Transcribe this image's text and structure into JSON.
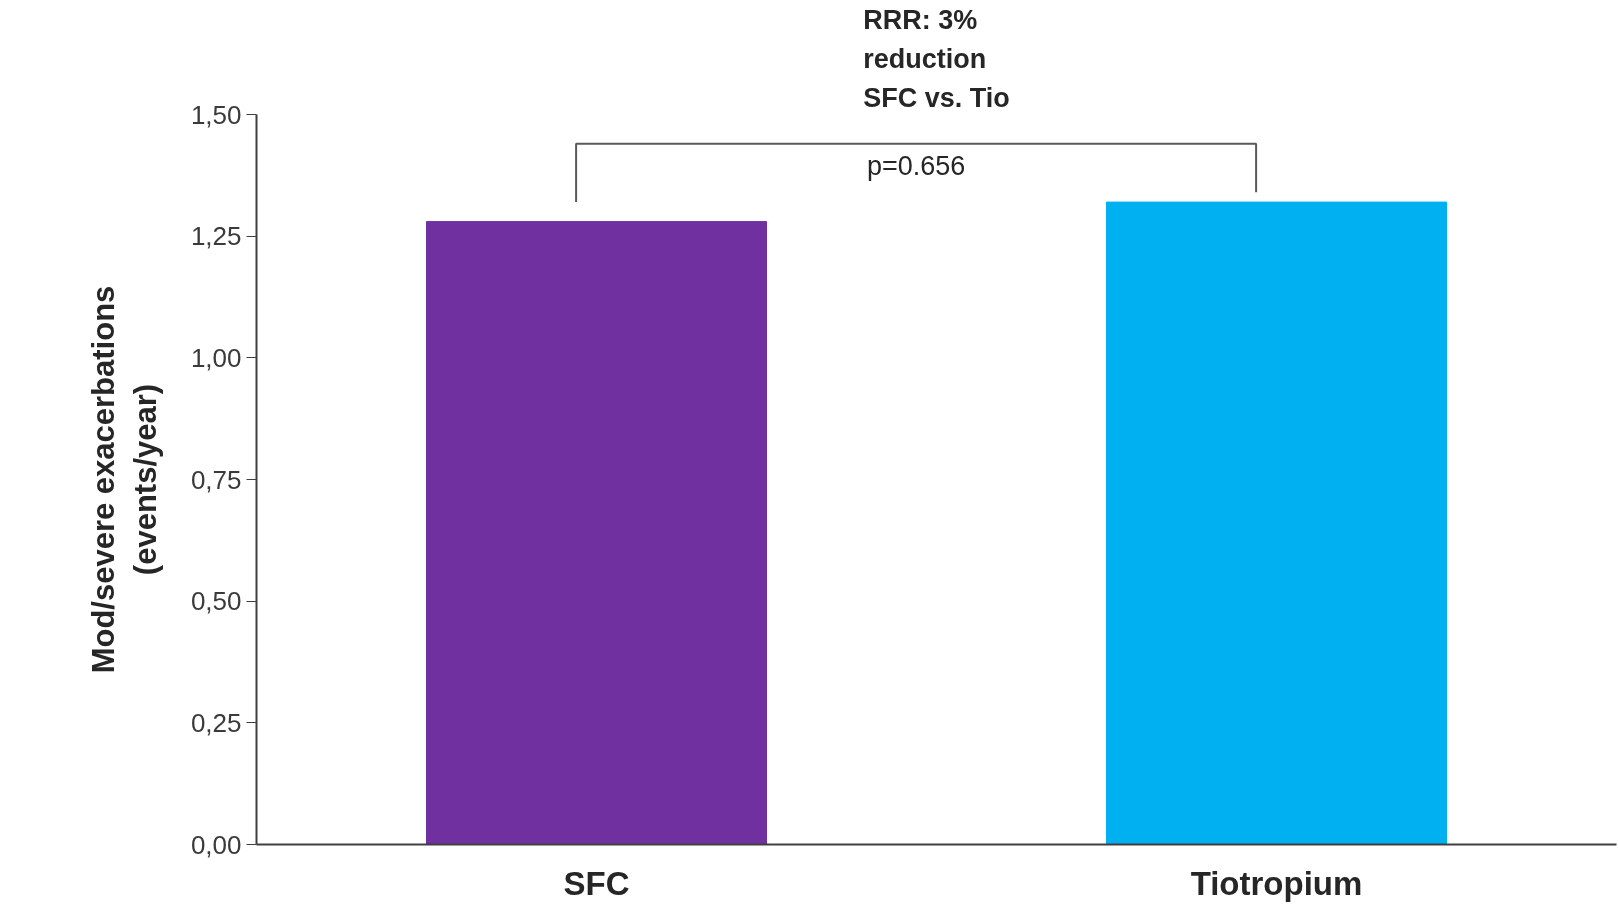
{
  "chart_data": {
    "type": "bar",
    "ylabel": "Mod/severe exacerbations\n(events/year)",
    "categories": [
      "SFC",
      "Tiotropium"
    ],
    "values": [
      1.28,
      1.32
    ],
    "colors": [
      "#7030a0",
      "#00b0f0"
    ],
    "ylim": [
      0,
      1.5
    ],
    "yticks": [
      {
        "value": 0,
        "label": "0,00"
      },
      {
        "value": 0.25,
        "label": "0,25"
      },
      {
        "value": 0.5,
        "label": "0,50"
      },
      {
        "value": 0.75,
        "label": "0,75"
      },
      {
        "value": 1.0,
        "label": "1,00"
      },
      {
        "value": 1.25,
        "label": "1,25"
      },
      {
        "value": 1.5,
        "label": "1,50"
      }
    ],
    "grid": false,
    "annotations": [
      "RRR: 3%\nreduction\nSFC vs. Tio",
      "p=0.656"
    ]
  }
}
